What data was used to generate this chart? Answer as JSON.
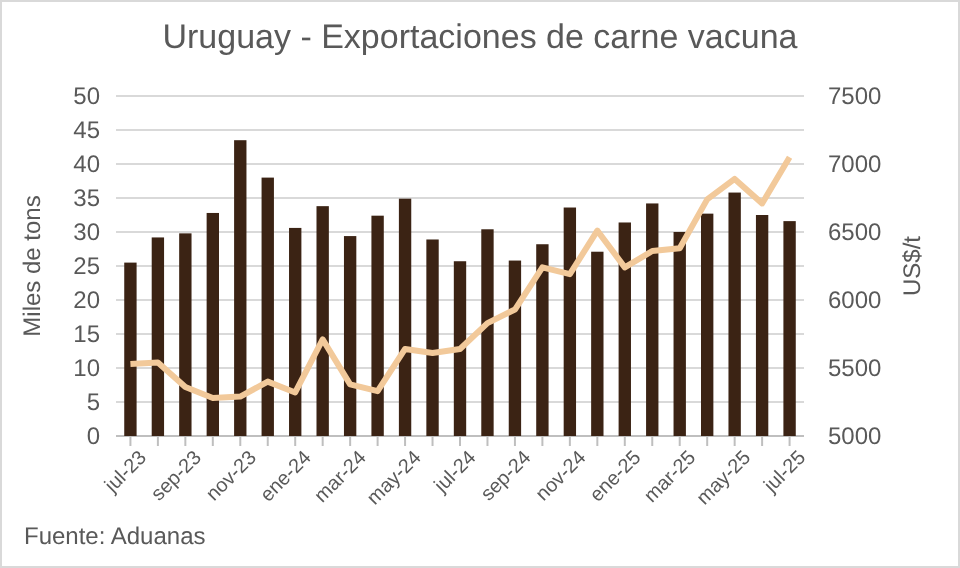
{
  "chart_data": {
    "type": "bar",
    "title": "Uruguay - Exportaciones de carne vacuna",
    "ylabel": "Miles de tons",
    "y2label": "US$/t",
    "annotations": [
      "Fuente: Aduanas"
    ],
    "categories": [
      "jul-23",
      null,
      "sep-23",
      null,
      "nov-23",
      null,
      "ene-24",
      null,
      "mar-24",
      null,
      "may-24",
      null,
      "jul-24",
      null,
      "sep-24",
      null,
      "nov-24",
      null,
      "ene-25",
      null,
      "mar-25",
      null,
      "may-25",
      null,
      "jul-25"
    ],
    "series": [
      {
        "color": "#3b2314",
        "values": [
          25.5,
          29.2,
          29.8,
          32.8,
          43.5,
          38,
          30.6,
          33.8,
          29.4,
          32.4,
          34.9,
          28.9,
          25.7,
          30.4,
          25.8,
          28.2,
          33.6,
          27.1,
          31.4,
          34.2,
          30.0,
          32.7,
          35.8,
          32.5,
          31.6
        ]
      },
      {
        "type": "line",
        "axis": "y2",
        "color": "#f2c99a",
        "values": [
          5530,
          5540,
          5360,
          5280,
          5290,
          5400,
          5320,
          5710,
          5380,
          5330,
          5640,
          5610,
          5640,
          5830,
          5930,
          6240,
          6190,
          6510,
          6240,
          6360,
          6380,
          6740,
          6890,
          6710,
          7050
        ]
      }
    ],
    "ylim": [
      0,
      50
    ],
    "yticks": [
      0,
      5,
      10,
      15,
      20,
      25,
      30,
      35,
      40,
      45,
      50
    ],
    "y2lim": [
      5000,
      7500
    ],
    "y2ticks": [
      5000,
      5500,
      6000,
      6500,
      7000,
      7500
    ],
    "grid": "y",
    "marker": "none",
    "line_style": "solid"
  }
}
